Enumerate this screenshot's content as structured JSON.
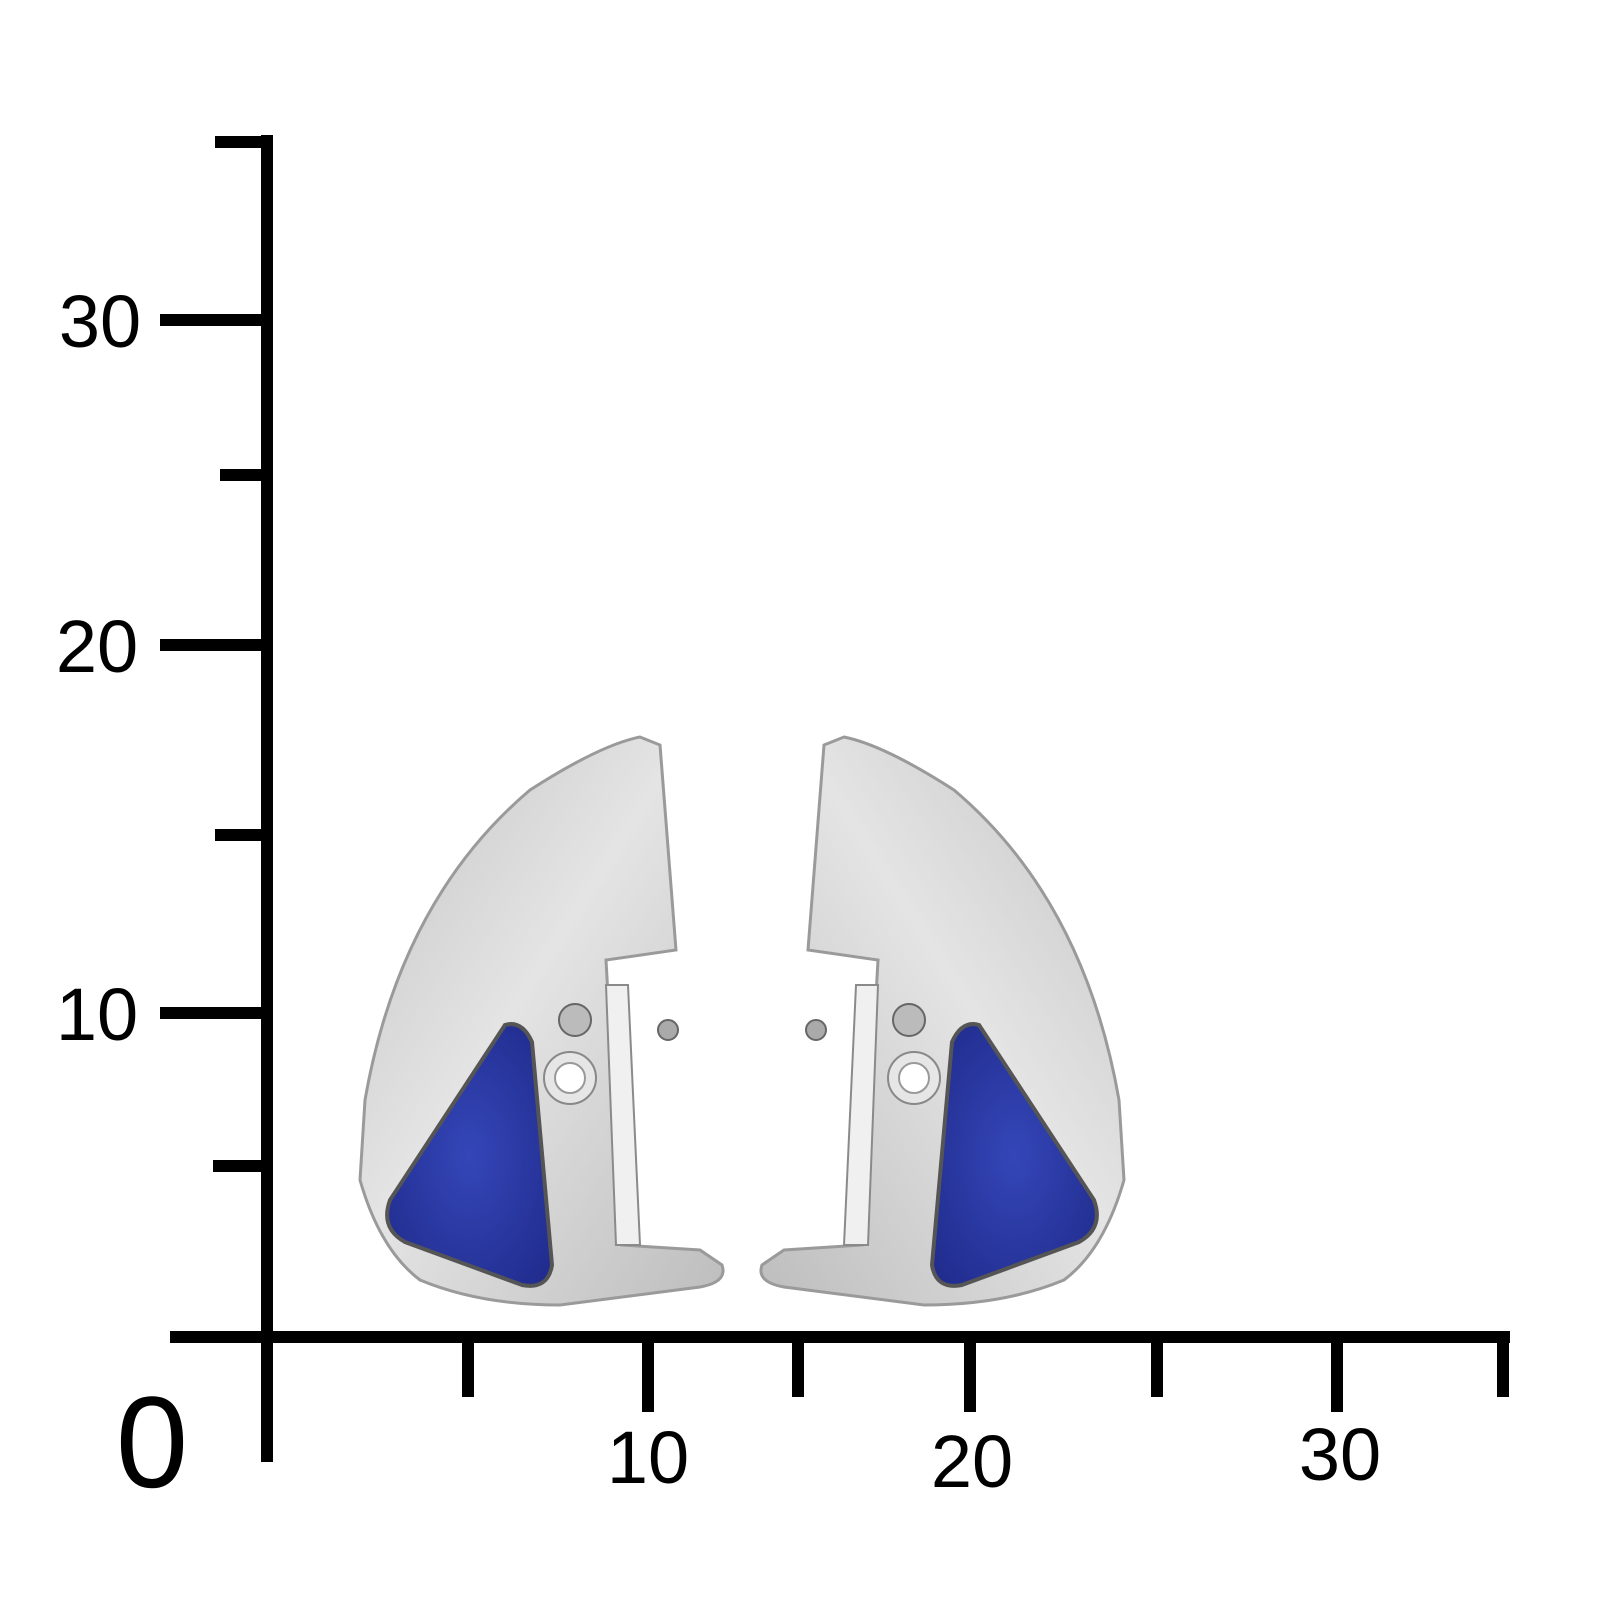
{
  "scale": {
    "y_labels": [
      "30",
      "20",
      "10"
    ],
    "x_labels": [
      "10",
      "20",
      "30"
    ],
    "origin_label": "0",
    "color": "#000000"
  },
  "product": {
    "metal_color": "#d9d9d9",
    "stone_color": "#2b3aa6"
  }
}
